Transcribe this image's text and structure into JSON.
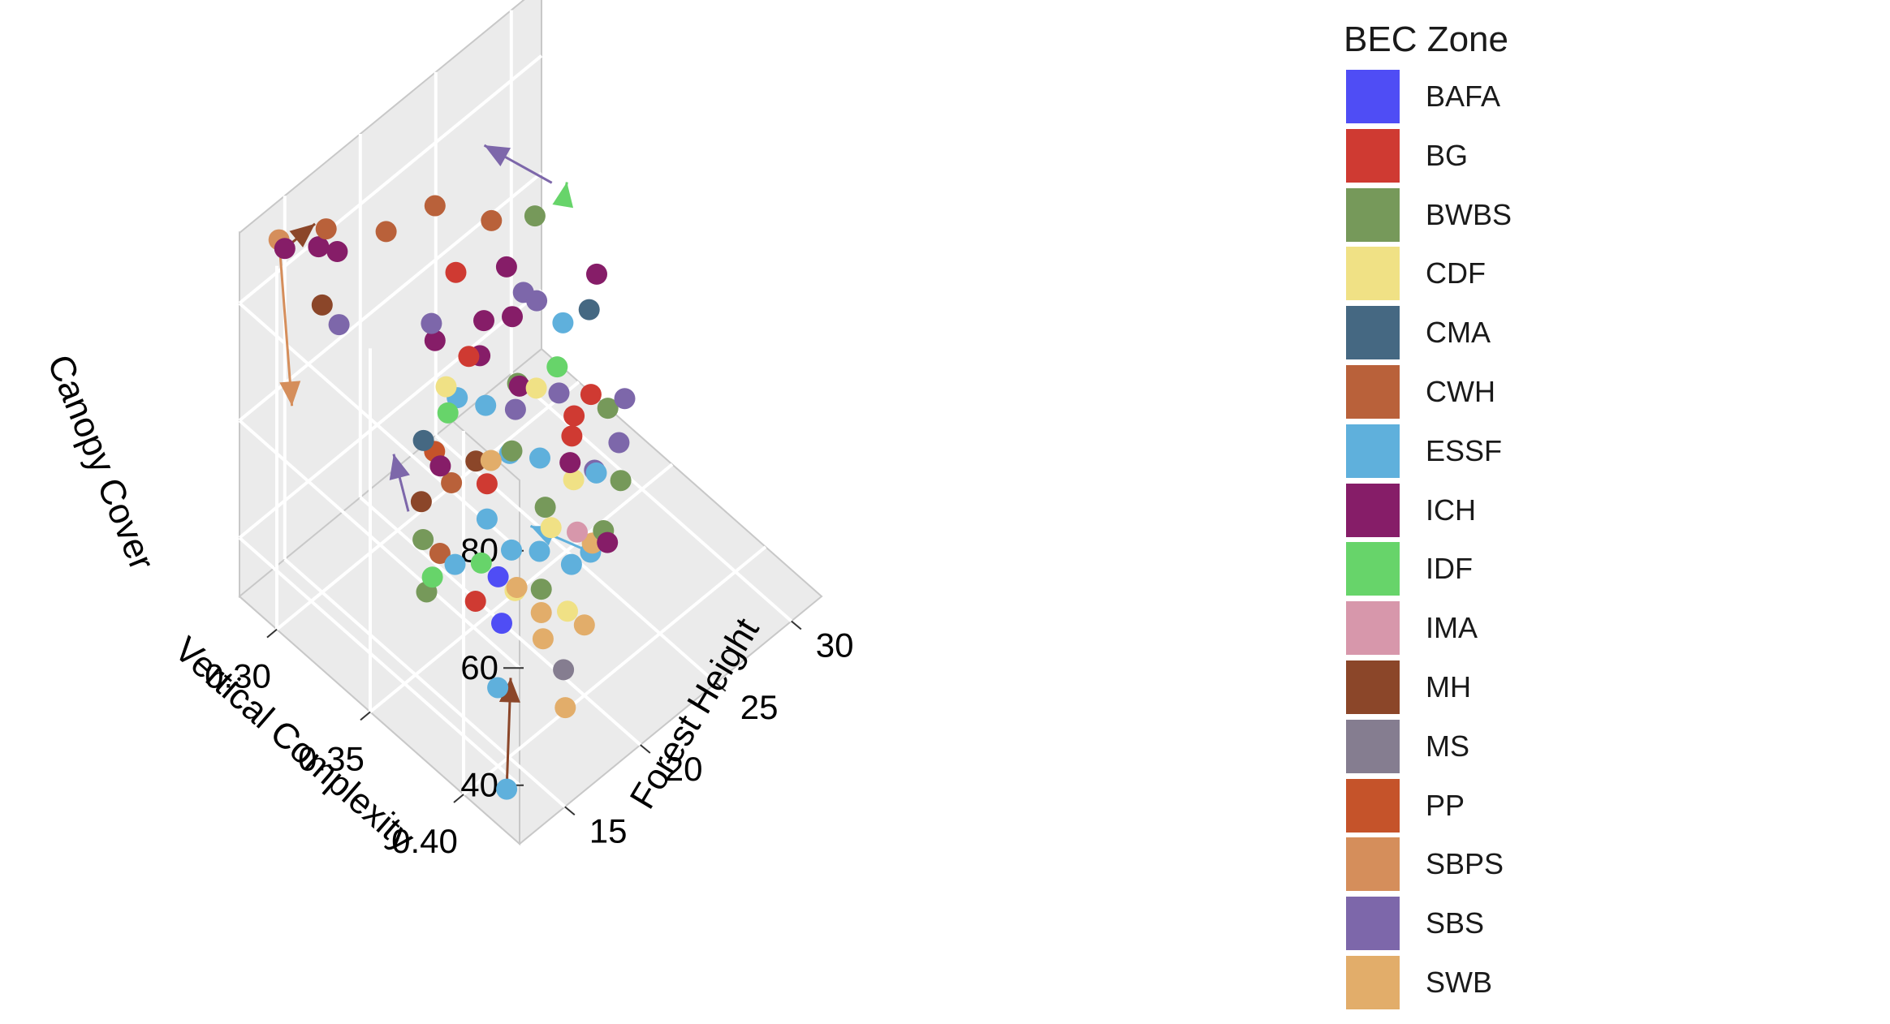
{
  "chart_data": {
    "type": "scatter",
    "subtype": "3d-scatter-with-arrows",
    "axes": {
      "x": {
        "label": "Vertical Complexity",
        "ticks": [
          "0.30",
          "0.35",
          "0.40"
        ],
        "range": [
          0.28,
          0.43
        ]
      },
      "y": {
        "label": "Forest Height",
        "ticks": [
          "15",
          "20",
          "25",
          "30"
        ],
        "range": [
          12,
          32
        ]
      },
      "z": {
        "label": "Canopy Cover",
        "ticks": [
          "40",
          "60",
          "80"
        ],
        "range": [
          30,
          92
        ]
      }
    },
    "grid": true,
    "legend": {
      "title": "BEC Zone",
      "position": "right",
      "entries": [
        {
          "name": "BAFA",
          "color": "#4f4df5"
        },
        {
          "name": "BG",
          "color": "#cf3a32"
        },
        {
          "name": "BWBS",
          "color": "#76995a"
        },
        {
          "name": "CDF",
          "color": "#f0e185"
        },
        {
          "name": "CMA",
          "color": "#456882"
        },
        {
          "name": "CWH",
          "color": "#b9613a"
        },
        {
          "name": "ESSF",
          "color": "#5fb0dc"
        },
        {
          "name": "ICH",
          "color": "#861d68"
        },
        {
          "name": "IDF",
          "color": "#67d46a"
        },
        {
          "name": "IMA",
          "color": "#d797ab"
        },
        {
          "name": "MH",
          "color": "#8b4629"
        },
        {
          "name": "MS",
          "color": "#857d90"
        },
        {
          "name": "PP",
          "color": "#c5532a"
        },
        {
          "name": "SBPS",
          "color": "#d58e5b"
        },
        {
          "name": "SBS",
          "color": "#7d67aa"
        },
        {
          "name": "SWB",
          "color": "#e2ad6a"
        }
      ]
    },
    "arrows": [
      {
        "zone": "MH",
        "from": [
          0.415,
          13.0,
          33
        ],
        "to": [
          0.405,
          14.5,
          46
        ]
      },
      {
        "zone": "SBPS",
        "from": [
          0.285,
          14.0,
          88
        ],
        "to": [
          0.3,
          13.0,
          66
        ]
      },
      {
        "zone": "SBS",
        "from": [
          0.33,
          26.5,
          84
        ],
        "to": [
          0.31,
          24.5,
          89
        ]
      },
      {
        "zone": "IDF",
        "from": [
          0.34,
          26.0,
          84
        ],
        "to": [
          0.33,
          27.5,
          82
        ]
      },
      {
        "zone": "ESSF",
        "from": [
          0.375,
          23.5,
          40
        ],
        "to": [
          0.355,
          22.0,
          42
        ]
      },
      {
        "zone": "SBS",
        "from": [
          0.33,
          17.0,
          48
        ],
        "to": [
          0.31,
          18.5,
          49
        ]
      },
      {
        "zone": "MH",
        "from": [
          0.28,
          15.0,
          83
        ],
        "to": [
          0.28,
          17.0,
          83
        ]
      }
    ],
    "points": [
      {
        "zone": "ESSF",
        "x": 0.415,
        "y": 13.0,
        "z": 33
      },
      {
        "zone": "SBPS",
        "x": 0.285,
        "y": 14.0,
        "z": 88
      },
      {
        "zone": "ESSF",
        "x": 0.375,
        "y": 23.5,
        "z": 40
      },
      {
        "zone": "ICH",
        "x": 0.29,
        "y": 16.0,
        "z": 84
      },
      {
        "zone": "CWH",
        "x": 0.29,
        "y": 16.5,
        "z": 86
      },
      {
        "zone": "ICH",
        "x": 0.3,
        "y": 16.0,
        "z": 86
      },
      {
        "zone": "ICH",
        "x": 0.28,
        "y": 15.0,
        "z": 83
      },
      {
        "zone": "MH",
        "x": 0.3,
        "y": 15.0,
        "z": 79
      },
      {
        "zone": "SBS",
        "x": 0.305,
        "y": 15.5,
        "z": 76
      },
      {
        "zone": "CWH",
        "x": 0.31,
        "y": 18.0,
        "z": 88
      },
      {
        "zone": "CWH",
        "x": 0.32,
        "y": 20.0,
        "z": 91
      },
      {
        "zone": "CWH",
        "x": 0.33,
        "y": 22.5,
        "z": 86
      },
      {
        "zone": "ICH",
        "x": 0.33,
        "y": 22.0,
        "z": 70
      },
      {
        "zone": "ICH",
        "x": 0.35,
        "y": 27.0,
        "z": 73
      },
      {
        "zone": "BWBS",
        "x": 0.34,
        "y": 23.0,
        "z": 60
      },
      {
        "zone": "ICH",
        "x": 0.345,
        "y": 22.5,
        "z": 62
      },
      {
        "zone": "SBS",
        "x": 0.35,
        "y": 24.5,
        "z": 58
      },
      {
        "zone": "ESSF",
        "x": 0.36,
        "y": 22.0,
        "z": 55
      },
      {
        "zone": "BG",
        "x": 0.365,
        "y": 23.5,
        "z": 57
      },
      {
        "zone": "CDF",
        "x": 0.37,
        "y": 23.0,
        "z": 52
      },
      {
        "zone": "SWB",
        "x": 0.38,
        "y": 23.0,
        "z": 44
      },
      {
        "zone": "SWB",
        "x": 0.385,
        "y": 19.0,
        "z": 42
      },
      {
        "zone": "SWB",
        "x": 0.39,
        "y": 18.5,
        "z": 40
      },
      {
        "zone": "CDF",
        "x": 0.395,
        "y": 19.5,
        "z": 44
      },
      {
        "zone": "SWB",
        "x": 0.4,
        "y": 20.0,
        "z": 42
      },
      {
        "zone": "ESSF",
        "x": 0.38,
        "y": 19.5,
        "z": 50
      },
      {
        "zone": "BWBS",
        "x": 0.375,
        "y": 20.5,
        "z": 54
      },
      {
        "zone": "ESSF",
        "x": 0.36,
        "y": 20.0,
        "z": 60
      },
      {
        "zone": "SBS",
        "x": 0.355,
        "y": 21.0,
        "z": 64
      },
      {
        "zone": "MH",
        "x": 0.35,
        "y": 19.0,
        "z": 58
      },
      {
        "zone": "CWH",
        "x": 0.345,
        "y": 18.0,
        "z": 55
      },
      {
        "zone": "ESSF",
        "x": 0.34,
        "y": 19.0,
        "z": 66
      },
      {
        "zone": "ICH",
        "x": 0.34,
        "y": 20.5,
        "z": 70
      },
      {
        "zone": "SBS",
        "x": 0.335,
        "y": 24.0,
        "z": 72
      },
      {
        "zone": "SBS",
        "x": 0.33,
        "y": 25.5,
        "z": 66
      },
      {
        "zone": "ICH",
        "x": 0.325,
        "y": 24.5,
        "z": 64
      },
      {
        "zone": "BG",
        "x": 0.33,
        "y": 21.0,
        "z": 66
      },
      {
        "zone": "ESSF",
        "x": 0.335,
        "y": 21.5,
        "z": 58
      },
      {
        "zone": "BWBS",
        "x": 0.345,
        "y": 22.0,
        "z": 52
      },
      {
        "zone": "ICH",
        "x": 0.36,
        "y": 24.0,
        "z": 50
      },
      {
        "zone": "SBS",
        "x": 0.365,
        "y": 25.0,
        "z": 48
      },
      {
        "zone": "BG",
        "x": 0.35,
        "y": 25.5,
        "z": 52
      },
      {
        "zone": "CDF",
        "x": 0.37,
        "y": 21.5,
        "z": 47
      },
      {
        "zone": "ESSF",
        "x": 0.385,
        "y": 21.0,
        "z": 46
      },
      {
        "zone": "BWBS",
        "x": 0.39,
        "y": 22.5,
        "z": 50
      },
      {
        "zone": "ICH",
        "x": 0.38,
        "y": 24.0,
        "z": 42
      },
      {
        "zone": "MS",
        "x": 0.405,
        "y": 18.0,
        "z": 40
      },
      {
        "zone": "SWB",
        "x": 0.41,
        "y": 17.5,
        "z": 36
      },
      {
        "zone": "ESSF",
        "x": 0.39,
        "y": 15.5,
        "z": 38
      },
      {
        "zone": "BAFA",
        "x": 0.38,
        "y": 17.0,
        "z": 43
      },
      {
        "zone": "BG",
        "x": 0.37,
        "y": 16.5,
        "z": 45
      },
      {
        "zone": "IDF",
        "x": 0.365,
        "y": 17.5,
        "z": 48
      },
      {
        "zone": "CWH",
        "x": 0.355,
        "y": 16.0,
        "z": 50
      },
      {
        "zone": "ESSF",
        "x": 0.355,
        "y": 17.0,
        "z": 46
      },
      {
        "zone": "BWBS",
        "x": 0.35,
        "y": 15.5,
        "z": 52
      },
      {
        "zone": "MH",
        "x": 0.345,
        "y": 16.0,
        "z": 56
      },
      {
        "zone": "ESSF",
        "x": 0.36,
        "y": 18.5,
        "z": 52
      },
      {
        "zone": "IDF",
        "x": 0.335,
        "y": 19.0,
        "z": 62
      },
      {
        "zone": "CDF",
        "x": 0.33,
        "y": 19.5,
        "z": 64
      },
      {
        "zone": "PP",
        "x": 0.34,
        "y": 17.5,
        "z": 60
      },
      {
        "zone": "ICH",
        "x": 0.32,
        "y": 20.0,
        "z": 68
      },
      {
        "zone": "BG",
        "x": 0.315,
        "y": 22.0,
        "z": 74
      },
      {
        "zone": "ICH",
        "x": 0.33,
        "y": 23.5,
        "z": 76
      },
      {
        "zone": "BWBS",
        "x": 0.325,
        "y": 26.0,
        "z": 78
      },
      {
        "zone": "SBS",
        "x": 0.31,
        "y": 21.0,
        "z": 66
      },
      {
        "zone": "CMA",
        "x": 0.35,
        "y": 26.5,
        "z": 68
      },
      {
        "zone": "ESSF",
        "x": 0.34,
        "y": 26.0,
        "z": 64
      },
      {
        "zone": "IDF",
        "x": 0.345,
        "y": 25.0,
        "z": 60
      },
      {
        "zone": "CDF",
        "x": 0.35,
        "y": 23.0,
        "z": 62
      },
      {
        "zone": "BG",
        "x": 0.355,
        "y": 26.0,
        "z": 56
      },
      {
        "zone": "BWBS",
        "x": 0.36,
        "y": 26.5,
        "z": 54
      },
      {
        "zone": "SBS",
        "x": 0.37,
        "y": 26.0,
        "z": 52
      },
      {
        "zone": "BWBS",
        "x": 0.375,
        "y": 25.5,
        "z": 48
      },
      {
        "zone": "SBS",
        "x": 0.365,
        "y": 27.0,
        "z": 56
      },
      {
        "zone": "ESSF",
        "x": 0.37,
        "y": 24.5,
        "z": 50
      },
      {
        "zone": "IMA",
        "x": 0.38,
        "y": 22.0,
        "z": 48
      },
      {
        "zone": "ESSF",
        "x": 0.365,
        "y": 19.5,
        "z": 46
      },
      {
        "zone": "BAFA",
        "x": 0.37,
        "y": 18.0,
        "z": 46
      },
      {
        "zone": "CDF",
        "x": 0.375,
        "y": 18.5,
        "z": 44
      },
      {
        "zone": "SWB",
        "x": 0.38,
        "y": 18.0,
        "z": 47
      },
      {
        "zone": "BWBS",
        "x": 0.385,
        "y": 19.0,
        "z": 46
      },
      {
        "zone": "BG",
        "x": 0.36,
        "y": 18.5,
        "z": 58
      },
      {
        "zone": "SWB",
        "x": 0.35,
        "y": 20.0,
        "z": 56
      },
      {
        "zone": "ICH",
        "x": 0.335,
        "y": 18.5,
        "z": 54
      },
      {
        "zone": "CMA",
        "x": 0.33,
        "y": 18.0,
        "z": 58
      },
      {
        "zone": "BWBS",
        "x": 0.36,
        "y": 14.5,
        "z": 48
      },
      {
        "zone": "IDF",
        "x": 0.355,
        "y": 15.5,
        "z": 47
      }
    ]
  }
}
